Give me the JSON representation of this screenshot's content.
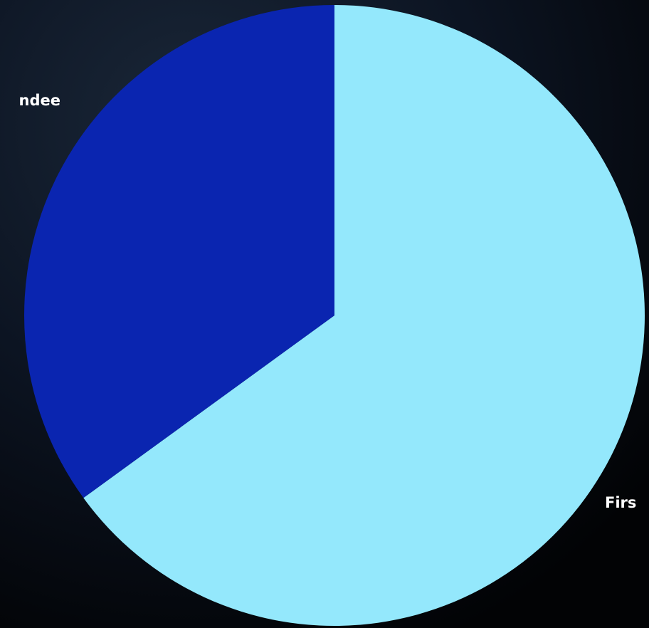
{
  "chart_data": {
    "type": "pie",
    "categories": [
      "Firs",
      "ndee"
    ],
    "values": [
      65,
      35
    ],
    "colors": [
      "#94e8fc",
      "#0a25b0"
    ]
  }
}
